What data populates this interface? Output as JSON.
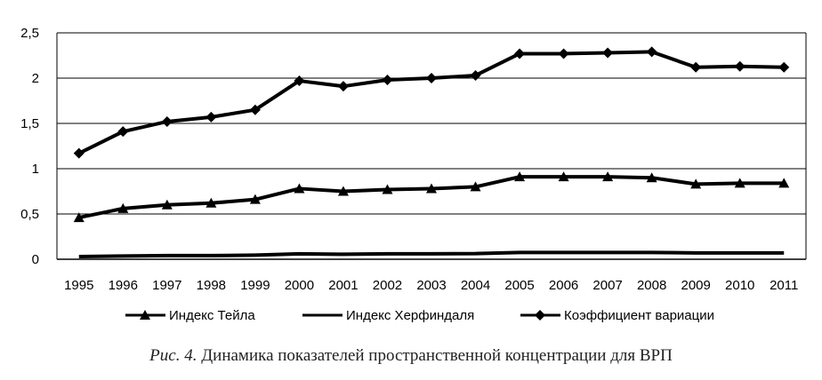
{
  "chart_data": {
    "type": "line",
    "categories": [
      "1995",
      "1996",
      "1997",
      "1998",
      "1999",
      "2000",
      "2001",
      "2002",
      "2003",
      "2004",
      "2005",
      "2006",
      "2007",
      "2008",
      "2009",
      "2010",
      "2011"
    ],
    "ylim": [
      0,
      2.5
    ],
    "yticks": [
      "0",
      "0,5",
      "1",
      "1,5",
      "2",
      "2,5"
    ],
    "grid": true,
    "legend_position": "bottom",
    "series": [
      {
        "name": "Индекс Тейла",
        "marker": "triangle",
        "values": [
          0.46,
          0.56,
          0.6,
          0.62,
          0.66,
          0.78,
          0.75,
          0.77,
          0.78,
          0.8,
          0.91,
          0.91,
          0.91,
          0.9,
          0.83,
          0.84,
          0.84
        ]
      },
      {
        "name": "Индекс Херфиндаля",
        "marker": "none",
        "values": [
          0.03,
          0.035,
          0.04,
          0.04,
          0.045,
          0.06,
          0.055,
          0.06,
          0.06,
          0.062,
          0.075,
          0.075,
          0.075,
          0.075,
          0.07,
          0.07,
          0.07
        ]
      },
      {
        "name": "Коэффициент вариации",
        "marker": "diamond",
        "values": [
          1.17,
          1.41,
          1.52,
          1.57,
          1.65,
          1.97,
          1.91,
          1.98,
          2.0,
          2.03,
          2.27,
          2.27,
          2.28,
          2.29,
          2.12,
          2.13,
          2.12
        ]
      }
    ]
  },
  "caption": {
    "label": "Рис. 4.",
    "text": " Динамика показателей пространственной концентрации для ВРП"
  }
}
